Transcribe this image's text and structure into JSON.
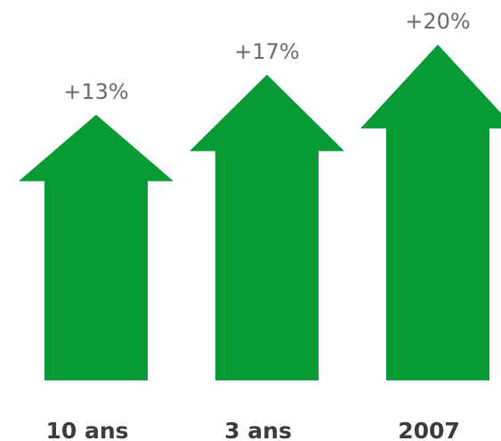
{
  "chart_data": {
    "type": "arrow-bar",
    "categories": [
      "10 ans",
      "3 ans",
      "2007"
    ],
    "values": [
      13,
      17,
      20
    ],
    "value_labels": [
      "+13%",
      "+17%",
      "+20%"
    ],
    "color": "#089a35",
    "ylim": [
      -13.5,
      20
    ]
  }
}
